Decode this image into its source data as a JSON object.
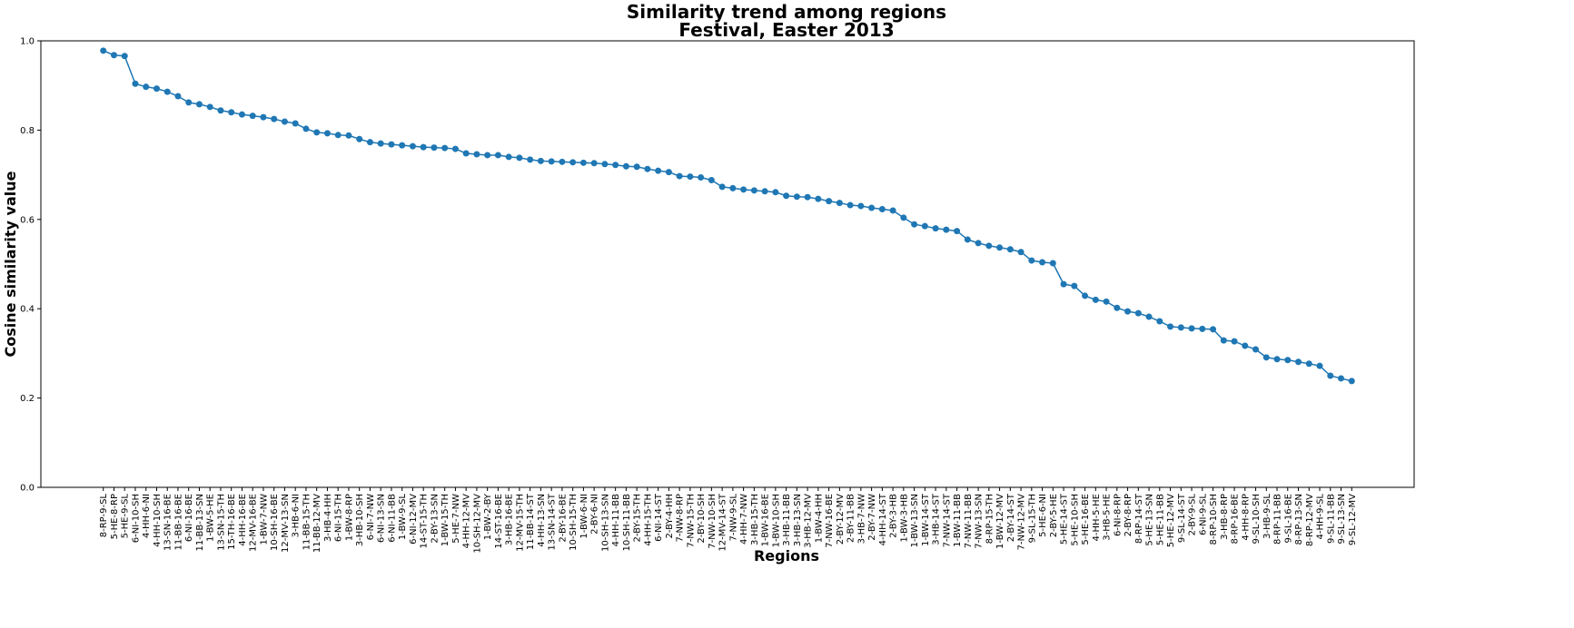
{
  "chart_data": {
    "type": "line",
    "title": "Similarity trend among regions",
    "subtitle": "Festival, Easter 2013",
    "x_label": "Regions",
    "y_label": "Cosine similarity value",
    "color": "#1f77b4",
    "categories": [
      "8-RP-9-SL",
      "5-HE-8-RP",
      "5-HE-9-SL",
      "6-NI-10-SH",
      "4-HH-6-NI",
      "4-HH-10-SH",
      "13-SN-16-BE",
      "11-BB-16-BE",
      "6-NI-16-BE",
      "11-BB-13-SN",
      "1-BW-5-HE",
      "13-SN-15-TH",
      "15-TH-16-BE",
      "4-HH-16-BE",
      "12-MV-16-BE",
      "1-BW-7-NW",
      "10-SH-16-BE",
      "12-MV-13-SN",
      "3-HB-6-NI",
      "11-BB-15-TH",
      "11-BB-12-MV",
      "3-HB-4-HH",
      "6-NI-15-TH",
      "1-BW-8-RP",
      "3-HB-10-SH",
      "6-NI-7-NW",
      "6-NI-13-SN",
      "6-NI-11-BB",
      "1-BW-9-SL",
      "6-NI-12-MV",
      "14-ST-15-TH",
      "2-BY-13-SN",
      "1-BW-15-TH",
      "5-HE-7-NW",
      "4-HH-12-MV",
      "10-SH-12-MV",
      "1-BW-2-BY",
      "14-ST-16-BE",
      "3-HB-16-BE",
      "12-MV-15-TH",
      "11-BB-14-ST",
      "4-HH-13-SN",
      "13-SN-14-ST",
      "2-BY-16-BE",
      "10-SH-15-TH",
      "1-BW-6-NI",
      "2-BY-6-NI",
      "10-SH-13-SN",
      "4-HH-11-BB",
      "10-SH-11-BB",
      "2-BY-15-TH",
      "4-HH-15-TH",
      "6-NI-14-ST",
      "2-BY-4-HH",
      "7-NW-8-RP",
      "7-NW-15-TH",
      "2-BY-10-SH",
      "7-NW-10-SH",
      "12-MV-14-ST",
      "7-NW-9-SL",
      "4-HH-7-NW",
      "3-HB-15-TH",
      "1-BW-16-BE",
      "1-BW-10-SH",
      "3-HB-11-BB",
      "3-HB-13-SN",
      "3-HB-12-MV",
      "1-BW-4-HH",
      "7-NW-16-BE",
      "2-BY-12-MV",
      "2-BY-11-BB",
      "3-HB-7-NW",
      "2-BY-7-NW",
      "4-HH-14-ST",
      "2-BY-3-HB",
      "1-BW-3-HB",
      "1-BW-13-SN",
      "1-BW-14-ST",
      "3-HB-14-ST",
      "7-NW-14-ST",
      "1-BW-11-BB",
      "7-NW-11-BB",
      "7-NW-13-SN",
      "8-RP-15-TH",
      "1-BW-12-MV",
      "2-BY-14-ST",
      "7-NW-12-MV",
      "9-SL-15-TH",
      "5-HE-6-NI",
      "2-BY-5-HE",
      "5-HE-14-ST",
      "5-HE-10-SH",
      "5-HE-16-BE",
      "4-HH-5-HE",
      "3-HB-5-HE",
      "6-NI-8-RP",
      "2-BY-8-RP",
      "8-RP-14-ST",
      "5-HE-13-SN",
      "5-HE-11-BB",
      "5-HE-12-MV",
      "9-SL-14-ST",
      "2-BY-9-SL",
      "6-NI-9-SL",
      "8-RP-10-SH",
      "3-HB-8-RP",
      "8-RP-16-BE",
      "4-HH-8-RP",
      "9-SL-10-SH",
      "3-HB-9-SL",
      "8-RP-11-BB",
      "9-SL-16-BE",
      "8-RP-13-SN",
      "8-RP-12-MV",
      "4-HH-9-SL",
      "9-SL-11-BB",
      "9-SL-13-SN",
      "9-SL-12-MV"
    ],
    "values": [
      0.978,
      0.968,
      0.966,
      0.904,
      0.897,
      0.893,
      0.886,
      0.876,
      0.862,
      0.858,
      0.852,
      0.844,
      0.84,
      0.835,
      0.832,
      0.829,
      0.825,
      0.819,
      0.815,
      0.803,
      0.795,
      0.793,
      0.789,
      0.788,
      0.78,
      0.773,
      0.77,
      0.768,
      0.766,
      0.764,
      0.762,
      0.761,
      0.76,
      0.758,
      0.748,
      0.746,
      0.744,
      0.744,
      0.74,
      0.738,
      0.734,
      0.731,
      0.73,
      0.729,
      0.728,
      0.727,
      0.726,
      0.724,
      0.722,
      0.719,
      0.718,
      0.713,
      0.709,
      0.706,
      0.697,
      0.696,
      0.694,
      0.688,
      0.673,
      0.67,
      0.667,
      0.665,
      0.663,
      0.661,
      0.653,
      0.651,
      0.65,
      0.646,
      0.641,
      0.637,
      0.632,
      0.63,
      0.626,
      0.623,
      0.62,
      0.604,
      0.589,
      0.585,
      0.58,
      0.577,
      0.574,
      0.555,
      0.547,
      0.541,
      0.537,
      0.533,
      0.527,
      0.508,
      0.504,
      0.502,
      0.455,
      0.451,
      0.429,
      0.42,
      0.416,
      0.402,
      0.394,
      0.39,
      0.382,
      0.372,
      0.36,
      0.358,
      0.356,
      0.355,
      0.354,
      0.329,
      0.327,
      0.317,
      0.309,
      0.291,
      0.287,
      0.285,
      0.281,
      0.277,
      0.272,
      0.25,
      0.244,
      0.238
    ],
    "ylim": [
      0,
      1
    ],
    "yticks": [
      {
        "value": 0,
        "label": "0.0"
      },
      {
        "value": 0.2,
        "label": "0.2"
      },
      {
        "value": 0.4,
        "label": "0.4"
      },
      {
        "value": 0.6,
        "label": "0.6"
      },
      {
        "value": 0.8,
        "label": "0.8"
      },
      {
        "value": 1,
        "label": "1.0"
      }
    ],
    "grid": false
  }
}
